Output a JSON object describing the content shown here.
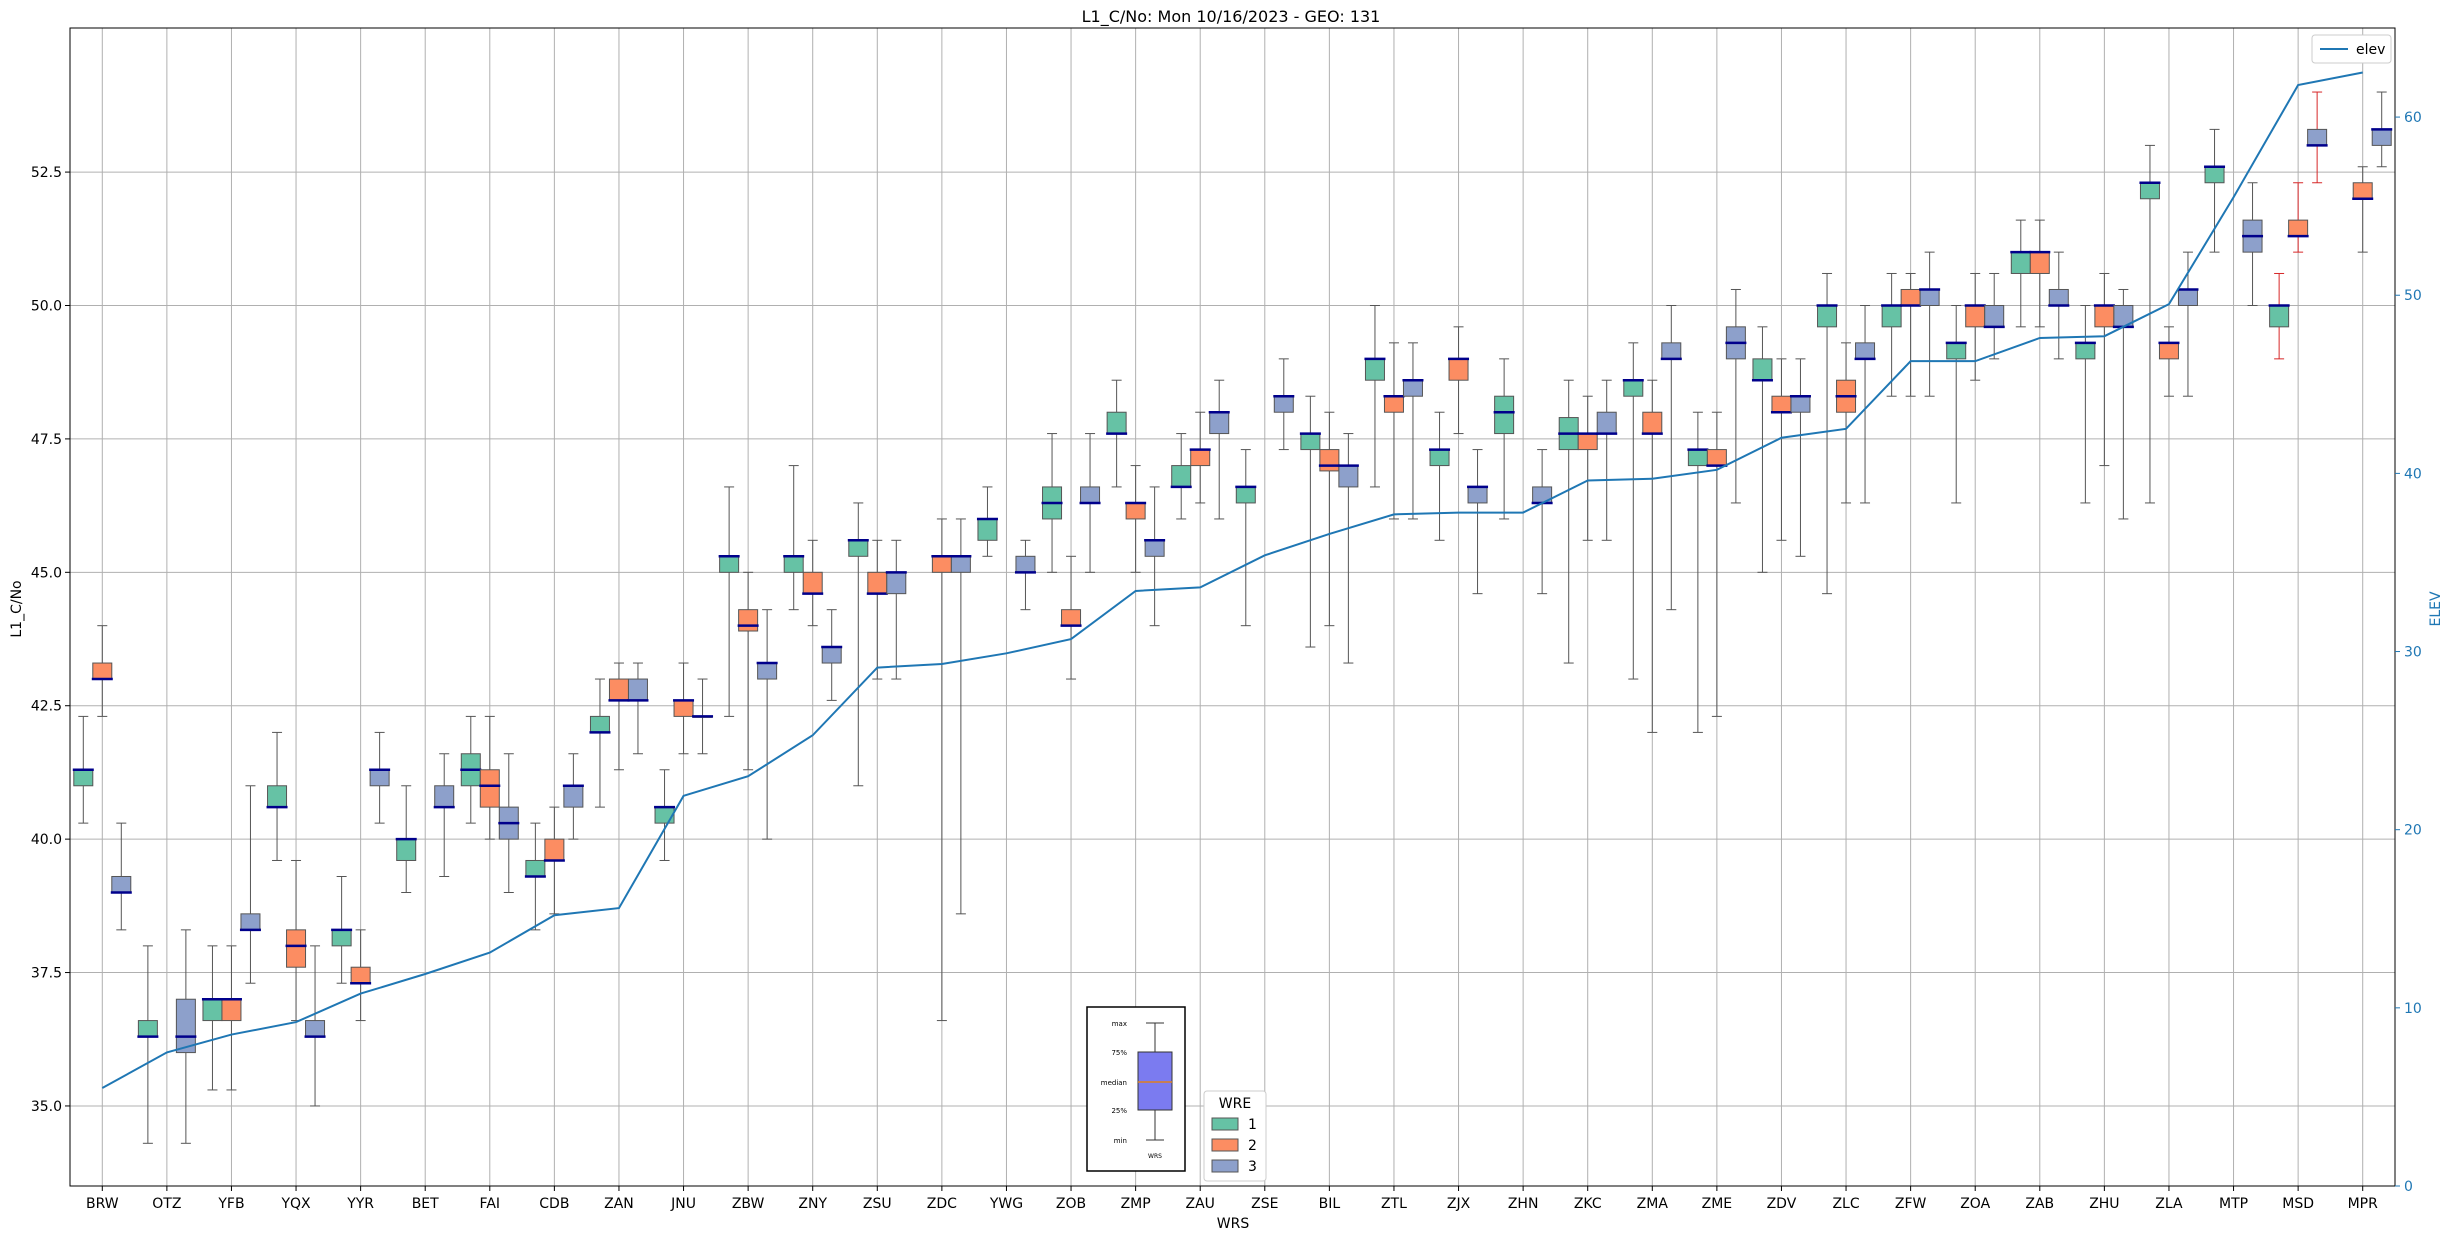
{
  "chart_data": {
    "type": "box",
    "title": "L1_C/No: Mon 10/16/2023 - GEO: 131",
    "xlabel": "WRS",
    "ylabel": "L1_C/No",
    "y2label": "ELEV",
    "ylim": [
      33.5,
      55.2
    ],
    "y2lim": [
      0,
      65
    ],
    "yticks": [
      "35.0",
      "37.5",
      "40.0",
      "42.5",
      "45.0",
      "47.5",
      "50.0",
      "52.5"
    ],
    "y2ticks": [
      "0",
      "10",
      "20",
      "30",
      "40",
      "50",
      "60"
    ],
    "grid": true,
    "categories": [
      "BRW",
      "OTZ",
      "YFB",
      "YQX",
      "YYR",
      "BET",
      "FAI",
      "CDB",
      "ZAN",
      "JNU",
      "ZBW",
      "ZNY",
      "ZSU",
      "ZDC",
      "YWG",
      "ZOB",
      "ZMP",
      "ZAU",
      "ZSE",
      "BIL",
      "ZTL",
      "ZJX",
      "ZHN",
      "ZKC",
      "ZMA",
      "ZME",
      "ZDV",
      "ZLC",
      "ZFW",
      "ZOA",
      "ZAB",
      "ZHU",
      "ZLA",
      "MTP",
      "MSD",
      "MPR"
    ],
    "series": [
      {
        "name": "1",
        "color": "#66c2a5",
        "boxes": [
          [
            0,
            40.3,
            41.0,
            41.3,
            41.3,
            42.3
          ],
          [
            1,
            34.3,
            36.3,
            36.3,
            36.6,
            38.0
          ],
          [
            2,
            35.3,
            36.6,
            37.0,
            37.0,
            38.0
          ],
          [
            3,
            39.6,
            40.6,
            40.6,
            41.0,
            42.0
          ],
          [
            4,
            37.3,
            38.0,
            38.3,
            38.3,
            39.3
          ],
          [
            5,
            39.0,
            39.6,
            40.0,
            40.0,
            41.0
          ],
          [
            6,
            40.3,
            41.0,
            41.3,
            41.6,
            42.3
          ],
          [
            7,
            38.3,
            39.3,
            39.3,
            39.6,
            40.3
          ],
          [
            8,
            40.6,
            42.0,
            42.0,
            42.3,
            43.0
          ],
          [
            9,
            39.6,
            40.3,
            40.6,
            40.6,
            41.3
          ],
          [
            10,
            42.3,
            45.0,
            45.3,
            45.3,
            46.6
          ],
          [
            11,
            44.3,
            45.0,
            45.3,
            45.3,
            47.0
          ],
          [
            12,
            41.0,
            45.3,
            45.6,
            45.6,
            46.3
          ],
          [
            14,
            45.3,
            45.6,
            46.0,
            46.0,
            46.6
          ],
          [
            15,
            45.0,
            46.0,
            46.3,
            46.6,
            47.6
          ],
          [
            16,
            46.6,
            47.6,
            47.6,
            48.0,
            48.6
          ],
          [
            17,
            46.0,
            46.6,
            46.6,
            47.0,
            47.6
          ],
          [
            18,
            44.0,
            46.3,
            46.6,
            46.6,
            47.3
          ],
          [
            19,
            43.6,
            47.3,
            47.6,
            47.6,
            48.3
          ],
          [
            20,
            46.6,
            48.6,
            49.0,
            49.0,
            50.0
          ],
          [
            21,
            45.6,
            47.0,
            47.3,
            47.3,
            48.0
          ],
          [
            22,
            46.0,
            47.6,
            48.0,
            48.3,
            49.0
          ],
          [
            23,
            43.3,
            47.3,
            47.6,
            47.9,
            48.6
          ],
          [
            24,
            43.0,
            48.3,
            48.6,
            48.6,
            49.3
          ],
          [
            25,
            42.0,
            47.0,
            47.3,
            47.3,
            48.0
          ],
          [
            26,
            45.0,
            48.6,
            48.6,
            49.0,
            49.6
          ],
          [
            27,
            44.6,
            49.6,
            50.0,
            50.0,
            50.6
          ],
          [
            28,
            48.3,
            49.6,
            50.0,
            50.0,
            50.6
          ],
          [
            29,
            46.3,
            49.0,
            49.3,
            49.3,
            50.0
          ],
          [
            30,
            49.6,
            50.6,
            51.0,
            51.0,
            51.6
          ],
          [
            31,
            46.3,
            49.0,
            49.3,
            49.3,
            50.0
          ],
          [
            32,
            46.3,
            52.0,
            52.3,
            52.3,
            53.0
          ],
          [
            33,
            51.0,
            52.3,
            52.6,
            52.6,
            53.3
          ],
          [
            34,
            49.0,
            49.6,
            50.0,
            50.0,
            50.6
          ]
        ]
      },
      {
        "name": "2",
        "color": "#fc8d62",
        "boxes": [
          [
            0,
            42.3,
            43.0,
            43.0,
            43.3,
            44.0
          ],
          [
            2,
            35.3,
            36.6,
            37.0,
            37.0,
            38.0
          ],
          [
            3,
            36.6,
            37.6,
            38.0,
            38.3,
            39.6
          ],
          [
            4,
            36.6,
            37.3,
            37.3,
            37.6,
            38.3
          ],
          [
            6,
            40.0,
            40.6,
            41.0,
            41.3,
            42.3
          ],
          [
            7,
            38.6,
            39.6,
            39.6,
            40.0,
            40.6
          ],
          [
            8,
            41.3,
            42.6,
            42.6,
            43.0,
            43.3
          ],
          [
            9,
            41.6,
            42.3,
            42.6,
            42.6,
            43.3
          ],
          [
            10,
            41.3,
            43.9,
            44.0,
            44.3,
            45.0
          ],
          [
            11,
            44.0,
            44.6,
            44.6,
            45.0,
            45.6
          ],
          [
            12,
            43.0,
            44.6,
            44.6,
            45.0,
            45.6
          ],
          [
            13,
            36.6,
            45.0,
            45.3,
            45.3,
            46.0
          ],
          [
            15,
            43.0,
            44.0,
            44.0,
            44.3,
            45.3
          ],
          [
            16,
            45.0,
            46.0,
            46.3,
            46.3,
            47.0
          ],
          [
            17,
            46.3,
            47.0,
            47.3,
            47.3,
            48.0
          ],
          [
            19,
            44.0,
            46.9,
            47.0,
            47.3,
            48.0
          ],
          [
            20,
            46.0,
            48.0,
            48.3,
            48.3,
            49.3
          ],
          [
            21,
            47.6,
            48.6,
            49.0,
            49.0,
            49.6
          ],
          [
            23,
            45.6,
            47.3,
            47.6,
            47.6,
            48.3
          ],
          [
            24,
            42.0,
            47.6,
            47.6,
            48.0,
            48.6
          ],
          [
            25,
            42.3,
            47.0,
            47.0,
            47.3,
            48.0
          ],
          [
            26,
            45.6,
            48.0,
            48.0,
            48.3,
            49.0
          ],
          [
            27,
            46.3,
            48.0,
            48.3,
            48.6,
            49.3
          ],
          [
            28,
            48.3,
            50.0,
            50.0,
            50.3,
            50.6
          ],
          [
            29,
            48.6,
            49.6,
            50.0,
            50.0,
            50.6
          ],
          [
            30,
            49.6,
            50.6,
            51.0,
            51.0,
            51.6
          ],
          [
            31,
            47.0,
            49.6,
            50.0,
            50.0,
            50.6
          ],
          [
            32,
            48.3,
            49.0,
            49.3,
            49.3,
            49.6
          ],
          [
            34,
            51.0,
            51.3,
            51.3,
            51.6,
            52.3
          ],
          [
            35,
            51.0,
            52.0,
            52.0,
            52.3,
            52.6
          ]
        ]
      },
      {
        "name": "3",
        "color": "#8da0cb",
        "boxes": [
          [
            0,
            38.3,
            39.0,
            39.0,
            39.3,
            40.3
          ],
          [
            1,
            34.3,
            36.0,
            36.3,
            37.0,
            38.3
          ],
          [
            2,
            37.3,
            38.3,
            38.3,
            38.6,
            41.0
          ],
          [
            3,
            35.0,
            36.3,
            36.3,
            36.6,
            38.0
          ],
          [
            4,
            40.3,
            41.0,
            41.3,
            41.3,
            42.0
          ],
          [
            5,
            39.3,
            40.6,
            40.6,
            41.0,
            41.6
          ],
          [
            6,
            39.0,
            40.0,
            40.3,
            40.6,
            41.6
          ],
          [
            7,
            40.0,
            40.6,
            41.0,
            41.0,
            41.6
          ],
          [
            8,
            41.6,
            42.6,
            42.6,
            43.0,
            43.3
          ],
          [
            9,
            41.6,
            42.3,
            42.3,
            42.3,
            43.0
          ],
          [
            10,
            40.0,
            43.0,
            43.3,
            43.3,
            44.3
          ],
          [
            11,
            42.6,
            43.3,
            43.6,
            43.6,
            44.3
          ],
          [
            12,
            43.0,
            44.6,
            45.0,
            45.0,
            45.6
          ],
          [
            13,
            38.6,
            45.0,
            45.3,
            45.3,
            46.0
          ],
          [
            14,
            44.3,
            45.0,
            45.0,
            45.3,
            45.6
          ],
          [
            15,
            45.0,
            46.3,
            46.3,
            46.6,
            47.6
          ],
          [
            16,
            44.0,
            45.3,
            45.6,
            45.6,
            46.6
          ],
          [
            17,
            46.0,
            47.6,
            48.0,
            48.0,
            48.6
          ],
          [
            18,
            47.3,
            48.0,
            48.3,
            48.3,
            49.0
          ],
          [
            19,
            43.3,
            46.6,
            47.0,
            47.0,
            47.6
          ],
          [
            20,
            46.0,
            48.3,
            48.6,
            48.6,
            49.3
          ],
          [
            21,
            44.6,
            46.3,
            46.6,
            46.6,
            47.3
          ],
          [
            22,
            44.6,
            46.3,
            46.3,
            46.6,
            47.3
          ],
          [
            23,
            45.6,
            47.6,
            47.6,
            48.0,
            48.6
          ],
          [
            24,
            44.3,
            49.0,
            49.0,
            49.3,
            50.0
          ],
          [
            25,
            46.3,
            49.0,
            49.3,
            49.6,
            50.3
          ],
          [
            26,
            45.3,
            48.0,
            48.3,
            48.3,
            49.0
          ],
          [
            27,
            46.3,
            49.0,
            49.0,
            49.3,
            50.0
          ],
          [
            28,
            48.3,
            50.0,
            50.3,
            50.3,
            51.0
          ],
          [
            29,
            49.0,
            49.6,
            49.6,
            50.0,
            50.6
          ],
          [
            30,
            49.0,
            50.0,
            50.0,
            50.3,
            51.0
          ],
          [
            31,
            46.0,
            49.6,
            49.6,
            50.0,
            50.3
          ],
          [
            32,
            48.3,
            50.0,
            50.3,
            50.3,
            51.0
          ],
          [
            33,
            50.0,
            51.0,
            51.3,
            51.6,
            52.3
          ],
          [
            34,
            52.3,
            53.0,
            53.0,
            53.3,
            54.0
          ],
          [
            35,
            52.6,
            53.0,
            53.3,
            53.3,
            54.0
          ]
        ]
      }
    ],
    "line": {
      "name": "elev",
      "color": "#1f77b4",
      "values": [
        5.5,
        7.5,
        8.5,
        9.2,
        10.8,
        11.9,
        13.1,
        15.2,
        15.6,
        21.9,
        23.0,
        25.3,
        29.1,
        29.3,
        29.9,
        30.7,
        33.4,
        33.6,
        35.4,
        36.6,
        37.7,
        37.8,
        37.8,
        39.6,
        39.7,
        40.2,
        42.0,
        42.5,
        46.3,
        46.3,
        47.6,
        47.7,
        49.5,
        55.5,
        61.8,
        62.5
      ]
    },
    "legend": {
      "title": "WRE",
      "position": "bottom-center",
      "labels": [
        "1",
        "2",
        "3"
      ]
    },
    "line_legend": {
      "label": "elev",
      "position": "top-right"
    },
    "inset_labels": {
      "max": "max",
      "p75": "75%",
      "median": "median",
      "p25": "25%",
      "min": "min",
      "box": "WRS"
    }
  }
}
